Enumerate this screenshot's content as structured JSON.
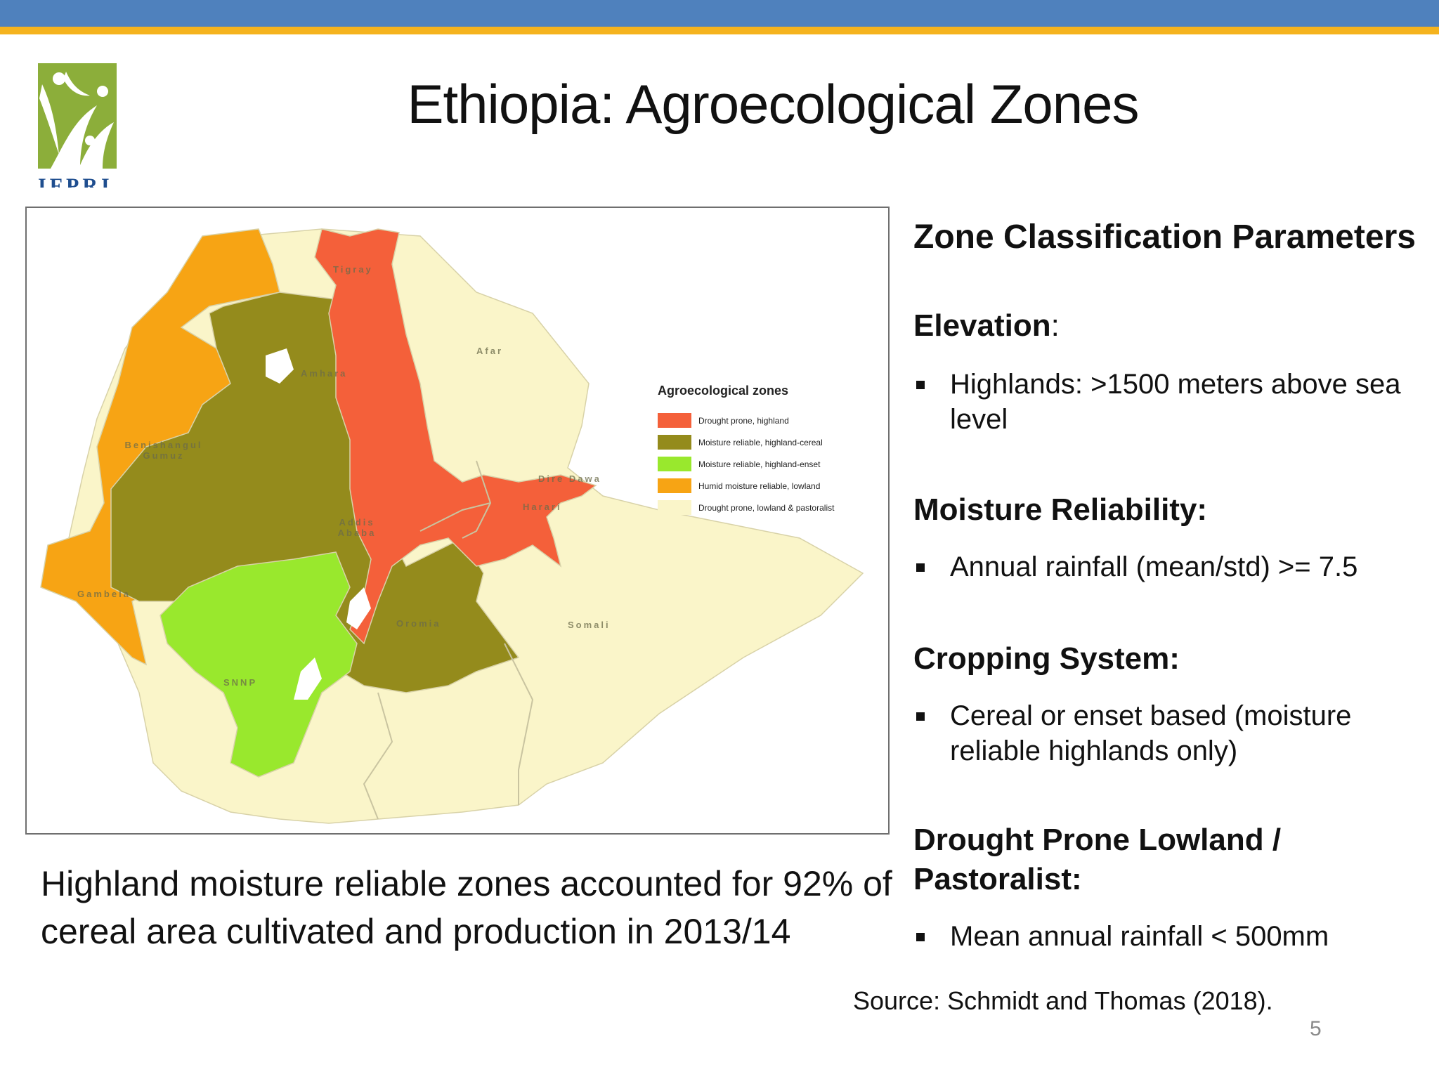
{
  "title": "Ethiopia: Agroecological Zones",
  "logo": {
    "text": "IFPRI"
  },
  "map": {
    "legend": {
      "title": "Agroecological zones",
      "items": [
        {
          "label": "Drought prone, highland",
          "color": "#f4603a"
        },
        {
          "label": "Moisture reliable, highland-cereal",
          "color": "#948b1c"
        },
        {
          "label": "Moisture reliable, highland-enset",
          "color": "#99e82d"
        },
        {
          "label": "Humid moisture reliable, lowland",
          "color": "#f7a414"
        },
        {
          "label": "Drought prone, lowland & pastoralist",
          "color": "#faf5c9"
        }
      ]
    },
    "regions": [
      "Tigray",
      "Afar",
      "Amhara",
      "Benishangul Gumuz",
      "Dire Dawa",
      "Harari",
      "Addis Ababa",
      "Gambela",
      "Oromia",
      "Somali",
      "SNNP"
    ]
  },
  "panel": {
    "heading": "Zone Classification Parameters",
    "parameters": [
      {
        "name": "Elevation",
        "suffix": ":",
        "bullet": "Highlands: >1500 meters above sea level"
      },
      {
        "name": "Moisture Reliability:",
        "suffix": "",
        "bullet": "Annual rainfall (mean/std) >= 7.5"
      },
      {
        "name": "Cropping System:",
        "suffix": "",
        "bullet": "Cereal or enset based (moisture reliable highlands only)"
      },
      {
        "name": "Drought Prone Lowland / Pastoralist:",
        "suffix": "",
        "bullet": "Mean annual rainfall < 500mm"
      }
    ]
  },
  "caption": "Highland moisture reliable zones accounted for 92% of cereal area cultivated and production in 2013/14",
  "source": "Source: Schmidt and Thomas (2018).",
  "page_number": "5"
}
